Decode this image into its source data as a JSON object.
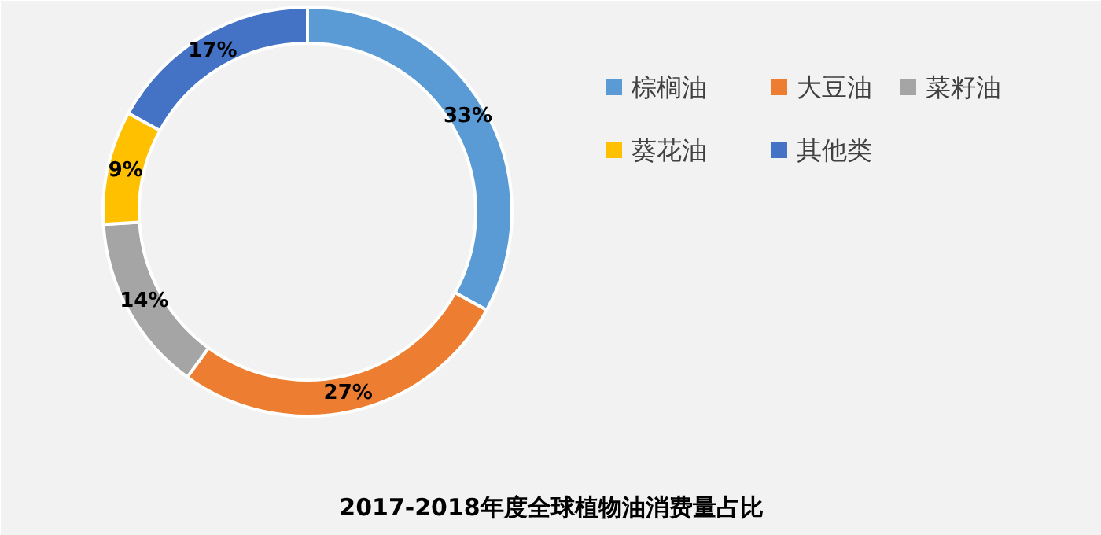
{
  "chart_data": {
    "type": "donut",
    "title": "2017-2018年度全球植物油消费量占比",
    "categories": [
      "棕榈油",
      "大豆油",
      "菜籽油",
      "葵花油",
      "其他类"
    ],
    "values": [
      33,
      27,
      14,
      9,
      17
    ],
    "colors": [
      "#5b9bd5",
      "#ed7d31",
      "#a5a5a5",
      "#ffc000",
      "#4472c4"
    ],
    "value_labels": [
      "33%",
      "27%",
      "14%",
      "9%",
      "17%"
    ],
    "legend": "right"
  }
}
